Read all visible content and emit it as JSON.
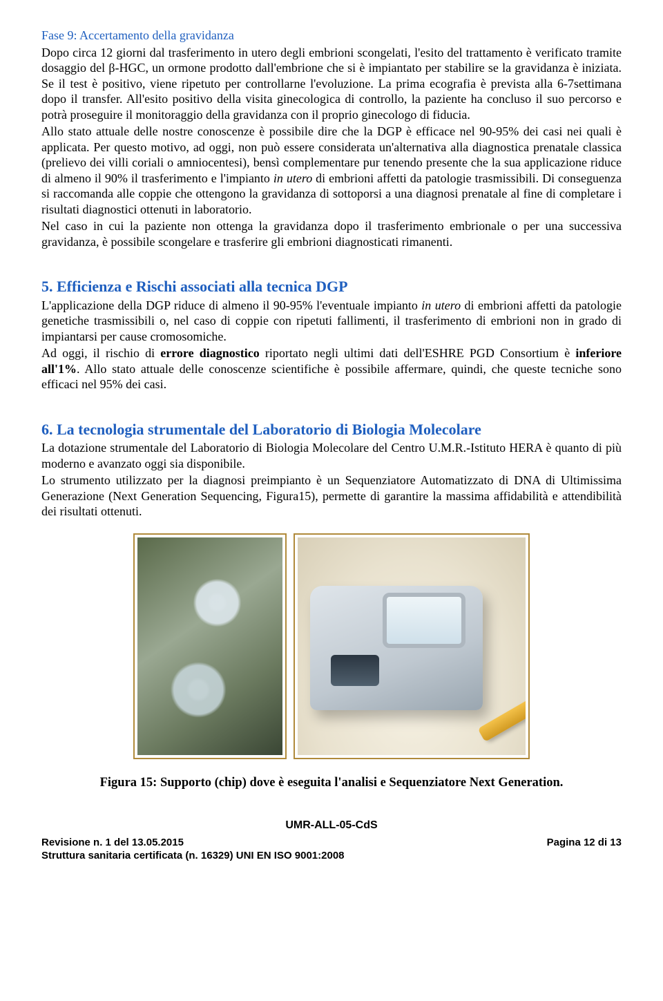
{
  "colors": {
    "heading_blue": "#1f5fbf",
    "body_text": "#000000",
    "figure_border": "#b08a3a",
    "page_bg": "#ffffff"
  },
  "typography": {
    "body_family": "Times New Roman",
    "body_size_pt": 13,
    "heading_size_pt": 16,
    "footer_family": "Arial",
    "footer_size_pt": 11
  },
  "fase9": {
    "title": "Fase 9: Accertamento della gravidanza",
    "p1": "Dopo circa 12 giorni dal trasferimento in utero degli embrioni scongelati, l'esito del trattamento è verificato tramite dosaggio del β-HGC, un ormone prodotto dall'embrione che si è impiantato per stabilire se la gravidanza è iniziata. Se il test è positivo, viene ripetuto per controllarne l'evoluzione. La prima ecografia è prevista alla 6-7settimana dopo il transfer. All'esito positivo della visita ginecologica di controllo, la paziente ha concluso il suo percorso e potrà proseguire il monitoraggio della gravidanza con il proprio ginecologo di fiducia.",
    "p2a": "Allo stato attuale delle nostre conoscenze è possibile dire che la DGP è efficace nel 90-95% dei casi nei quali è applicata. Per questo motivo, ad oggi, non può essere considerata un'alternativa alla diagnostica prenatale classica (prelievo dei villi coriali o amniocentesi), bensì complementare pur tenendo presente che la sua applicazione riduce di almeno il 90% il trasferimento e l'impianto ",
    "p2_italic": "in utero",
    "p2b": " di embrioni affetti da patologie trasmissibili. Di conseguenza si raccomanda alle coppie che ottengono la gravidanza di sottoporsi a una diagnosi prenatale al fine di completare i risultati diagnostici ottenuti in laboratorio.",
    "p3": "Nel caso in cui la paziente non ottenga la gravidanza dopo il trasferimento embrionale o per una successiva gravidanza, è possibile scongelare e trasferire gli embrioni diagnosticati rimanenti."
  },
  "sec5": {
    "title": "5. Efficienza e Rischi associati alla tecnica DGP",
    "p1a": "L'applicazione della DGP riduce di almeno il 90-95% l'eventuale impianto ",
    "p1_italic": "in utero",
    "p1b": " di embrioni affetti da patologie genetiche trasmissibili o, nel caso di coppie con ripetuti fallimenti, il trasferimento di embrioni non in grado di impiantarsi per cause cromosomiche.",
    "p2a": "Ad oggi, il rischio di ",
    "p2_bold1": "errore diagnostico",
    "p2b": " riportato negli ultimi dati dell'ESHRE PGD Consortium è ",
    "p2_bold2": "inferiore all'1%",
    "p2c": ". Allo stato attuale delle conoscenze scientifiche è possibile affermare, quindi, che queste tecniche sono efficaci nel 95% dei casi."
  },
  "sec6": {
    "title": "6. La tecnologia strumentale del Laboratorio di Biologia Molecolare",
    "p1": "La dotazione strumentale del Laboratorio di Biologia Molecolare del Centro U.M.R.-Istituto HERA è quanto di più moderno e avanzato oggi sia disponibile.",
    "p2": "Lo strumento utilizzato per la diagnosi preimpianto è un Sequenziatore Automatizzato di DNA di Ultimissima Generazione (Next Generation Sequencing, Figura15), permette di garantire la massima affidabilità e attendibilità dei risultati ottenuti."
  },
  "figure": {
    "caption": "Figura 15: Supporto (chip) dove è eseguita l'analisi e Sequenziatore Next Generation.",
    "left_alt": "chip-support",
    "right_alt": "next-gen-sequencer"
  },
  "footer": {
    "doc_code": "UMR-ALL-05-CdS",
    "revision": "Revisione n. 1 del 13.05.2015",
    "cert": "Struttura sanitaria certificata (n. 16329) UNI EN ISO 9001:2008",
    "page": "Pagina 12 di 13"
  }
}
